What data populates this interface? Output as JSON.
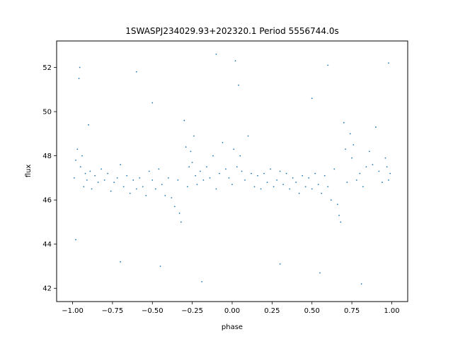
{
  "chart_data": {
    "type": "scatter",
    "title": "1SWASPJ234029.93+202320.1 Period 5556744.0s",
    "xlabel": "phase",
    "ylabel": "flux",
    "xlim": [
      -1.1,
      1.1
    ],
    "ylim": [
      41.4,
      53.2
    ],
    "xticks": [
      -1.0,
      -0.75,
      -0.5,
      -0.25,
      0.0,
      0.25,
      0.5,
      0.75,
      1.0
    ],
    "xtick_labels": [
      "−1.00",
      "−0.75",
      "−0.50",
      "−0.25",
      "0.00",
      "0.25",
      "0.50",
      "0.75",
      "1.00"
    ],
    "yticks": [
      42,
      44,
      46,
      48,
      50,
      52
    ],
    "ytick_labels": [
      "42",
      "44",
      "46",
      "48",
      "50",
      "52"
    ],
    "grid": false,
    "legend": "none",
    "marker_color": "#1f77b4",
    "series": [
      {
        "points": [
          [
            -0.99,
            47.0
          ],
          [
            -0.98,
            47.8
          ],
          [
            -0.97,
            48.3
          ],
          [
            -0.96,
            51.5
          ],
          [
            -0.955,
            52.0
          ],
          [
            -0.95,
            47.5
          ],
          [
            -0.94,
            48.0
          ],
          [
            -0.93,
            46.6
          ],
          [
            -0.92,
            47.2
          ],
          [
            -0.91,
            46.9
          ],
          [
            -0.9,
            49.4
          ],
          [
            -0.89,
            47.3
          ],
          [
            -0.88,
            46.5
          ],
          [
            -0.86,
            47.1
          ],
          [
            -0.84,
            46.8
          ],
          [
            -0.82,
            47.4
          ],
          [
            -0.8,
            46.9
          ],
          [
            -0.78,
            47.2
          ],
          [
            -0.76,
            46.4
          ],
          [
            -0.74,
            46.8
          ],
          [
            -0.72,
            47.0
          ],
          [
            -0.7,
            47.6
          ],
          [
            -0.68,
            46.6
          ],
          [
            -0.66,
            47.1
          ],
          [
            -0.64,
            46.3
          ],
          [
            -0.62,
            46.9
          ],
          [
            -0.6,
            46.5
          ],
          [
            -0.58,
            47.0
          ],
          [
            -0.56,
            46.6
          ],
          [
            -0.54,
            46.2
          ],
          [
            -0.52,
            47.3
          ],
          [
            -0.5,
            46.9
          ],
          [
            -0.48,
            46.5
          ],
          [
            -0.46,
            47.4
          ],
          [
            -0.44,
            46.7
          ],
          [
            -0.42,
            46.2
          ],
          [
            -0.4,
            47.0
          ],
          [
            -0.38,
            46.1
          ],
          [
            -0.36,
            45.7
          ],
          [
            -0.34,
            46.9
          ],
          [
            -0.33,
            45.4
          ],
          [
            -0.32,
            45.0
          ],
          [
            -0.3,
            49.6
          ],
          [
            -0.29,
            48.4
          ],
          [
            -0.28,
            46.6
          ],
          [
            -0.27,
            47.5
          ],
          [
            -0.26,
            48.2
          ],
          [
            -0.25,
            47.7
          ],
          [
            -0.24,
            48.9
          ],
          [
            -0.23,
            47.1
          ],
          [
            -0.22,
            46.7
          ],
          [
            -0.2,
            47.3
          ],
          [
            -0.18,
            46.9
          ],
          [
            -0.16,
            47.5
          ],
          [
            -0.14,
            47.0
          ],
          [
            -0.12,
            48.0
          ],
          [
            -0.1,
            46.5
          ],
          [
            -0.08,
            47.2
          ],
          [
            -0.06,
            48.6
          ],
          [
            -0.04,
            47.4
          ],
          [
            -0.02,
            47.0
          ],
          [
            0.0,
            46.7
          ],
          [
            0.01,
            48.3
          ],
          [
            0.03,
            47.5
          ],
          [
            0.04,
            51.2
          ],
          [
            0.05,
            48.0
          ],
          [
            0.06,
            47.3
          ],
          [
            0.08,
            46.9
          ],
          [
            0.1,
            48.9
          ],
          [
            0.12,
            47.2
          ],
          [
            0.14,
            46.6
          ],
          [
            0.16,
            47.1
          ],
          [
            0.18,
            46.5
          ],
          [
            0.2,
            47.2
          ],
          [
            0.22,
            46.8
          ],
          [
            0.24,
            47.4
          ],
          [
            0.26,
            46.6
          ],
          [
            0.28,
            46.9
          ],
          [
            0.3,
            47.3
          ],
          [
            0.32,
            46.7
          ],
          [
            0.34,
            47.2
          ],
          [
            0.36,
            46.5
          ],
          [
            0.38,
            47.0
          ],
          [
            0.4,
            46.8
          ],
          [
            0.42,
            46.3
          ],
          [
            0.44,
            47.1
          ],
          [
            0.46,
            46.6
          ],
          [
            0.48,
            47.0
          ],
          [
            0.5,
            46.5
          ],
          [
            0.52,
            47.2
          ],
          [
            0.54,
            46.7
          ],
          [
            0.56,
            46.3
          ],
          [
            0.58,
            47.1
          ],
          [
            0.6,
            46.6
          ],
          [
            0.62,
            46.0
          ],
          [
            0.64,
            47.4
          ],
          [
            0.66,
            45.8
          ],
          [
            0.67,
            45.3
          ],
          [
            0.68,
            45.0
          ],
          [
            0.7,
            49.5
          ],
          [
            0.71,
            48.3
          ],
          [
            0.72,
            46.8
          ],
          [
            0.74,
            49.0
          ],
          [
            0.75,
            47.9
          ],
          [
            0.76,
            48.5
          ],
          [
            0.78,
            46.9
          ],
          [
            0.8,
            47.2
          ],
          [
            0.82,
            46.6
          ],
          [
            0.84,
            47.5
          ],
          [
            0.86,
            48.2
          ],
          [
            0.88,
            47.6
          ],
          [
            0.9,
            49.3
          ],
          [
            0.92,
            47.3
          ],
          [
            0.94,
            46.8
          ],
          [
            0.96,
            47.9
          ],
          [
            0.97,
            47.5
          ],
          [
            0.98,
            46.9
          ],
          [
            0.99,
            47.2
          ],
          [
            -0.19,
            42.3
          ],
          [
            0.81,
            42.2
          ],
          [
            -0.98,
            44.2
          ],
          [
            -0.7,
            43.2
          ],
          [
            -0.45,
            43.0
          ],
          [
            0.3,
            43.1
          ],
          [
            0.55,
            42.7
          ],
          [
            0.02,
            52.3
          ],
          [
            0.98,
            52.2
          ],
          [
            -0.5,
            50.4
          ],
          [
            -0.1,
            52.6
          ],
          [
            0.5,
            50.6
          ],
          [
            -0.6,
            51.8
          ],
          [
            0.6,
            52.1
          ]
        ]
      }
    ]
  }
}
